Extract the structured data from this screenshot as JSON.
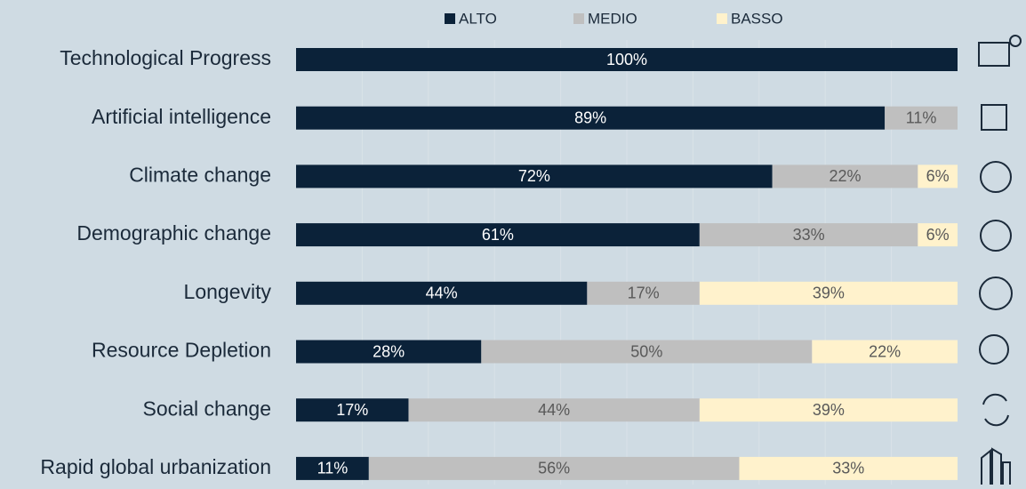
{
  "chart_data": {
    "type": "stacked-bar-horizontal",
    "categories": [
      "Technological Progress",
      "Artificial intelligence",
      "Climate change",
      "Demographic change",
      "Longevity",
      "Resource Depletion",
      "Social change",
      "Rapid global urbanization"
    ],
    "series": [
      {
        "name": "ALTO",
        "color": "#0b2239",
        "label_color": "#ffffff",
        "values": [
          100,
          89,
          72,
          61,
          44,
          28,
          17,
          11
        ],
        "value_labels": [
          "100%",
          "89%",
          "72%",
          "61%",
          "44%",
          "28%",
          "17%",
          "11%"
        ]
      },
      {
        "name": "MEDIO",
        "color": "#bfbfbf",
        "label_color": "#595959",
        "values": [
          null,
          11,
          22,
          33,
          17,
          50,
          44,
          56
        ],
        "value_labels": [
          null,
          "11%",
          "22%",
          "33%",
          "17%",
          "50%",
          "44%",
          "56%"
        ]
      },
      {
        "name": "BASSO",
        "color": "#fff2cc",
        "label_color": "#595959",
        "values": [
          null,
          null,
          6,
          6,
          39,
          22,
          39,
          33
        ],
        "value_labels": [
          null,
          null,
          "6%",
          "6%",
          "39%",
          "22%",
          "39%",
          "33%"
        ]
      }
    ],
    "xlim": [
      0,
      100
    ],
    "legend": "top"
  }
}
